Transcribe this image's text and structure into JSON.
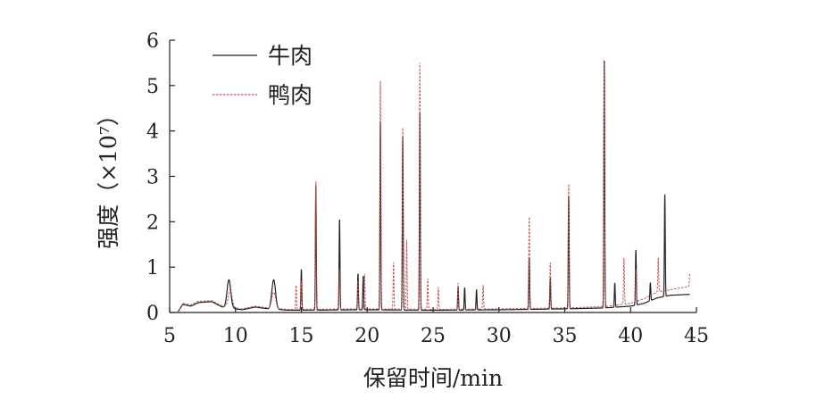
{
  "chart_data": {
    "type": "line",
    "xlabel": "保留时间/min",
    "ylabel": "强度（×10⁷）",
    "xlim": [
      5,
      45
    ],
    "ylim": [
      0,
      6
    ],
    "xticks": [
      "5",
      "10",
      "15",
      "20",
      "25",
      "30",
      "35",
      "40",
      "45"
    ],
    "yticks": [
      "0",
      "1",
      "2",
      "3",
      "4",
      "5",
      "6"
    ],
    "grid": false,
    "legend_position": "top-left",
    "series": [
      {
        "name": "牛肉",
        "color": "#222222",
        "style": "solid",
        "baseline": [
          [
            5.6,
            0.0
          ],
          [
            6.0,
            0.18
          ],
          [
            6.6,
            0.14
          ],
          [
            7.2,
            0.22
          ],
          [
            8.2,
            0.24
          ],
          [
            9.0,
            0.12
          ],
          [
            10.5,
            0.06
          ],
          [
            11.5,
            0.12
          ],
          [
            12.5,
            0.08
          ],
          [
            14.0,
            0.05
          ],
          [
            20.0,
            0.06
          ],
          [
            25.0,
            0.05
          ],
          [
            30.0,
            0.06
          ],
          [
            35.0,
            0.08
          ],
          [
            38.0,
            0.1
          ],
          [
            40.0,
            0.14
          ],
          [
            41.0,
            0.2
          ],
          [
            42.0,
            0.32
          ],
          [
            43.0,
            0.38
          ],
          [
            44.5,
            0.4
          ]
        ],
        "peaks": [
          {
            "x": 9.5,
            "y": 0.72
          },
          {
            "x": 12.9,
            "y": 0.72
          },
          {
            "x": 15.0,
            "y": 0.95
          },
          {
            "x": 16.1,
            "y": 2.8
          },
          {
            "x": 17.9,
            "y": 2.05
          },
          {
            "x": 19.3,
            "y": 0.85
          },
          {
            "x": 19.7,
            "y": 0.8
          },
          {
            "x": 21.0,
            "y": 4.2
          },
          {
            "x": 22.7,
            "y": 3.9
          },
          {
            "x": 24.0,
            "y": 4.4
          },
          {
            "x": 26.9,
            "y": 0.55
          },
          {
            "x": 27.4,
            "y": 0.55
          },
          {
            "x": 28.3,
            "y": 0.5
          },
          {
            "x": 32.3,
            "y": 1.2
          },
          {
            "x": 33.9,
            "y": 0.75
          },
          {
            "x": 35.3,
            "y": 2.58
          },
          {
            "x": 38.0,
            "y": 5.55
          },
          {
            "x": 38.8,
            "y": 0.65
          },
          {
            "x": 40.4,
            "y": 1.38
          },
          {
            "x": 41.5,
            "y": 0.65
          },
          {
            "x": 42.6,
            "y": 2.6
          }
        ]
      },
      {
        "name": "鸭肉",
        "color": "#c0504d",
        "style": "dashed",
        "baseline": [
          [
            5.6,
            0.0
          ],
          [
            6.0,
            0.2
          ],
          [
            6.6,
            0.17
          ],
          [
            7.2,
            0.25
          ],
          [
            8.2,
            0.26
          ],
          [
            9.0,
            0.14
          ],
          [
            10.5,
            0.08
          ],
          [
            11.5,
            0.14
          ],
          [
            12.5,
            0.1
          ],
          [
            14.0,
            0.07
          ],
          [
            20.0,
            0.08
          ],
          [
            25.0,
            0.07
          ],
          [
            30.0,
            0.08
          ],
          [
            35.0,
            0.1
          ],
          [
            38.0,
            0.13
          ],
          [
            40.0,
            0.2
          ],
          [
            41.0,
            0.3
          ],
          [
            42.0,
            0.45
          ],
          [
            43.0,
            0.5
          ],
          [
            44.5,
            0.58
          ]
        ],
        "peaks": [
          {
            "x": 9.6,
            "y": 0.5
          },
          {
            "x": 12.9,
            "y": 0.45
          },
          {
            "x": 14.6,
            "y": 0.6
          },
          {
            "x": 15.0,
            "y": 0.7
          },
          {
            "x": 16.1,
            "y": 2.9
          },
          {
            "x": 17.9,
            "y": 0.95
          },
          {
            "x": 19.3,
            "y": 0.7
          },
          {
            "x": 19.8,
            "y": 0.85
          },
          {
            "x": 21.0,
            "y": 5.1
          },
          {
            "x": 22.0,
            "y": 1.1
          },
          {
            "x": 22.7,
            "y": 4.1
          },
          {
            "x": 23.0,
            "y": 1.6
          },
          {
            "x": 24.0,
            "y": 5.5
          },
          {
            "x": 24.6,
            "y": 0.75
          },
          {
            "x": 25.4,
            "y": 0.55
          },
          {
            "x": 26.9,
            "y": 0.65
          },
          {
            "x": 28.8,
            "y": 0.6
          },
          {
            "x": 32.3,
            "y": 2.12
          },
          {
            "x": 33.9,
            "y": 1.1
          },
          {
            "x": 35.3,
            "y": 2.85
          },
          {
            "x": 38.0,
            "y": 5.5
          },
          {
            "x": 39.5,
            "y": 1.2
          },
          {
            "x": 40.4,
            "y": 0.95
          },
          {
            "x": 42.1,
            "y": 1.2
          },
          {
            "x": 44.5,
            "y": 0.85
          }
        ]
      }
    ]
  }
}
